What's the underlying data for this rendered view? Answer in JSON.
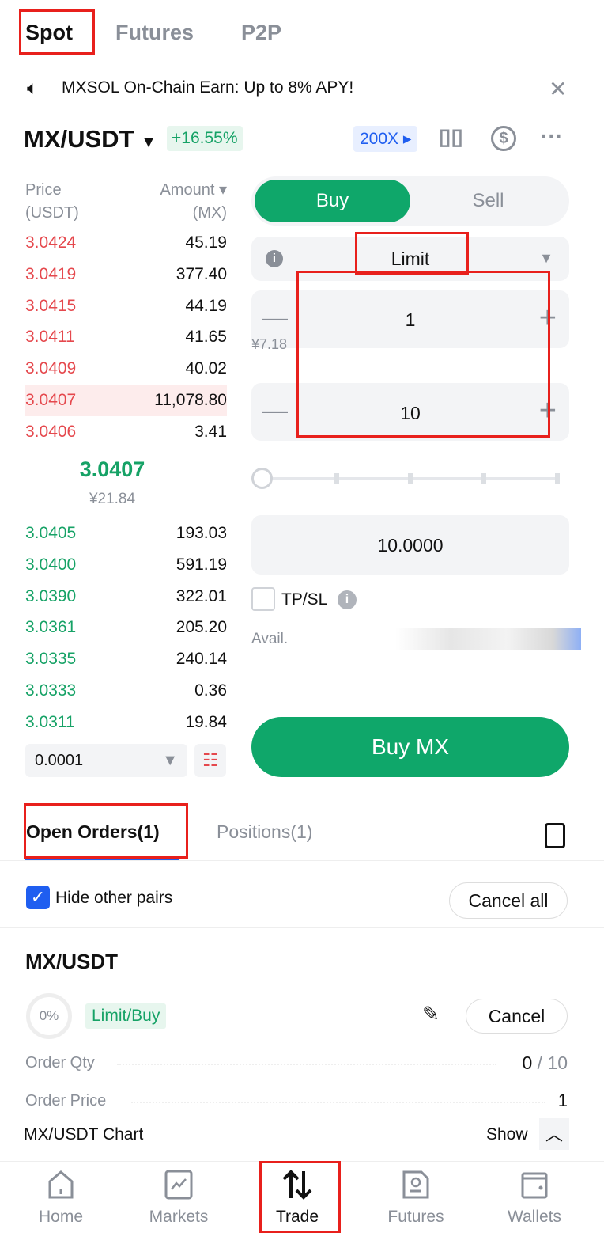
{
  "top_tabs": [
    "Spot",
    "Futures",
    "P2P"
  ],
  "banner": {
    "text": "MXSOL On-Chain Earn: Up to 8% APY!"
  },
  "pair": {
    "name": "MX/USDT",
    "change": "+16.55%",
    "leverage": "200X"
  },
  "orderbook": {
    "price_header": "Price",
    "price_unit": "(USDT)",
    "amount_header": "Amount",
    "amount_unit": "(MX)",
    "asks": [
      [
        "3.0424",
        "45.19"
      ],
      [
        "3.0419",
        "377.40"
      ],
      [
        "3.0415",
        "44.19"
      ],
      [
        "3.0411",
        "41.65"
      ],
      [
        "3.0409",
        "40.02"
      ],
      [
        "3.0407",
        "11,078.80"
      ],
      [
        "3.0406",
        "3.41"
      ]
    ],
    "last_price": "3.0407",
    "last_price_cny": "¥21.84",
    "bids": [
      [
        "3.0405",
        "193.03"
      ],
      [
        "3.0400",
        "591.19"
      ],
      [
        "3.0390",
        "322.01"
      ],
      [
        "3.0361",
        "205.20"
      ],
      [
        "3.0335",
        "240.14"
      ],
      [
        "3.0333",
        "0.36"
      ],
      [
        "3.0311",
        "19.84"
      ]
    ],
    "precision": "0.0001"
  },
  "form": {
    "buy": "Buy",
    "sell": "Sell",
    "order_type": "Limit",
    "price": "1",
    "price_cny": "¥7.18",
    "amount": "10",
    "slider_percent": 0,
    "total": "10.0000",
    "tpsl": "TP/SL",
    "avail": "Avail.",
    "submit": "Buy MX"
  },
  "orders": {
    "tab_open": "Open Orders(1)",
    "tab_positions": "Positions(1)",
    "hide_other": "Hide other pairs",
    "cancel_all": "Cancel all",
    "item": {
      "pair": "MX/USDT",
      "fill": "0%",
      "type": "Limit/Buy",
      "cancel": "Cancel",
      "qty_label": "Order Qty",
      "qty_filled": "0",
      "qty_total": "/ 10",
      "price_label": "Order Price",
      "price": "1"
    }
  },
  "chart_bar": {
    "label": "MX/USDT Chart",
    "show": "Show"
  },
  "bottom_nav": [
    "Home",
    "Markets",
    "Trade",
    "Futures",
    "Wallets"
  ],
  "colors": {
    "green": "#0fa76a",
    "red": "#e5484d",
    "annotation": "#e8201c"
  }
}
